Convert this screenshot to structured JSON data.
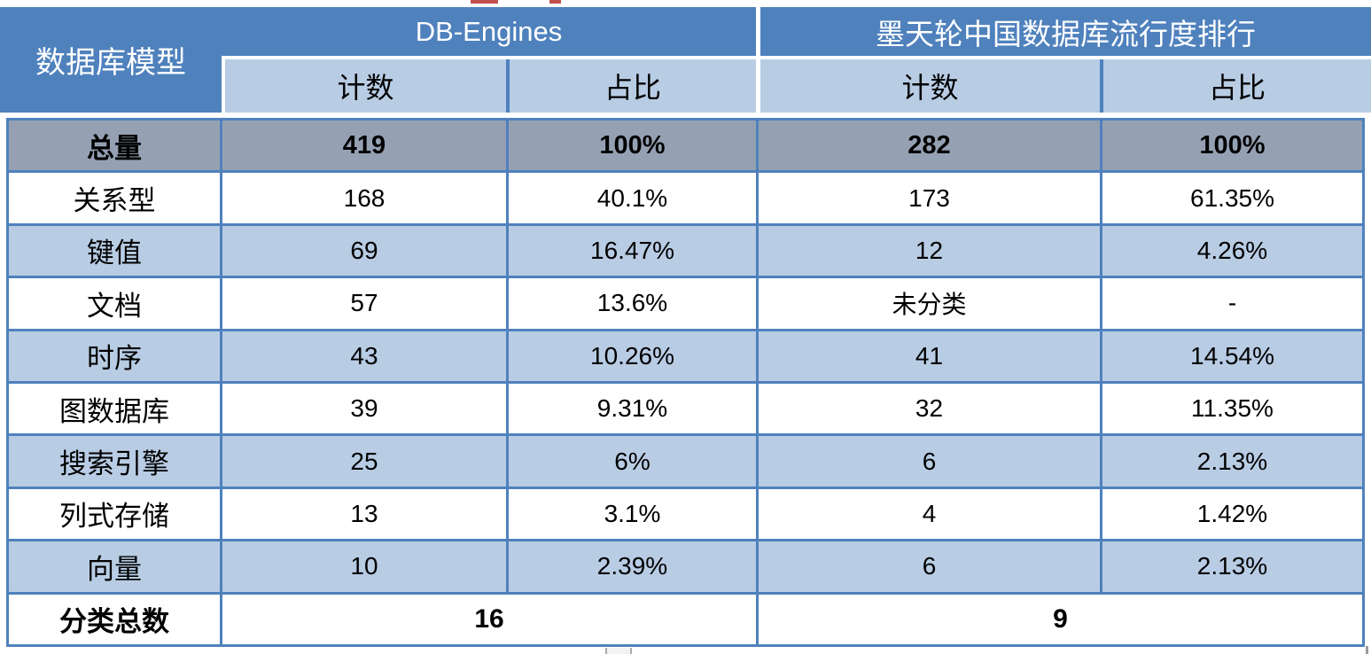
{
  "colors": {
    "header_blue": "#4F81BD",
    "light_blue": "#B8CCE4",
    "total_row_gray": "#95A1B3",
    "grid_border_blue": "#4F81BD",
    "header_text": "#FFFFFF",
    "body_text": "#000000",
    "artifact_red": "#C0504D"
  },
  "header": {
    "corner_label": "数据库模型",
    "groups": [
      {
        "title": "DB-Engines",
        "count_label": "计数",
        "share_label": "占比"
      },
      {
        "title": "墨天轮中国数据库流行度排行",
        "count_label": "计数",
        "share_label": "占比"
      }
    ]
  },
  "chart_data": {
    "type": "table",
    "columns": [
      "数据库模型",
      "DB-Engines 计数",
      "DB-Engines 占比",
      "墨天轮中国数据库流行度排行 计数",
      "墨天轮中国数据库流行度排行 占比"
    ],
    "rows": [
      [
        "总量",
        "419",
        "100%",
        "282",
        "100%"
      ],
      [
        "关系型",
        "168",
        "40.1%",
        "173",
        "61.35%"
      ],
      [
        "键值",
        "69",
        "16.47%",
        "12",
        "4.26%"
      ],
      [
        "文档",
        "57",
        "13.6%",
        "未分类",
        "-"
      ],
      [
        "时序",
        "43",
        "10.26%",
        "41",
        "14.54%"
      ],
      [
        "图数据库",
        "39",
        "9.31%",
        "32",
        "11.35%"
      ],
      [
        "搜索引擎",
        "25",
        "6%",
        "6",
        "2.13%"
      ],
      [
        "列式存储",
        "13",
        "3.1%",
        "4",
        "1.42%"
      ],
      [
        "向量",
        "10",
        "2.39%",
        "6",
        "2.13%"
      ],
      [
        "分类总数",
        "16",
        "",
        "9",
        ""
      ]
    ]
  }
}
